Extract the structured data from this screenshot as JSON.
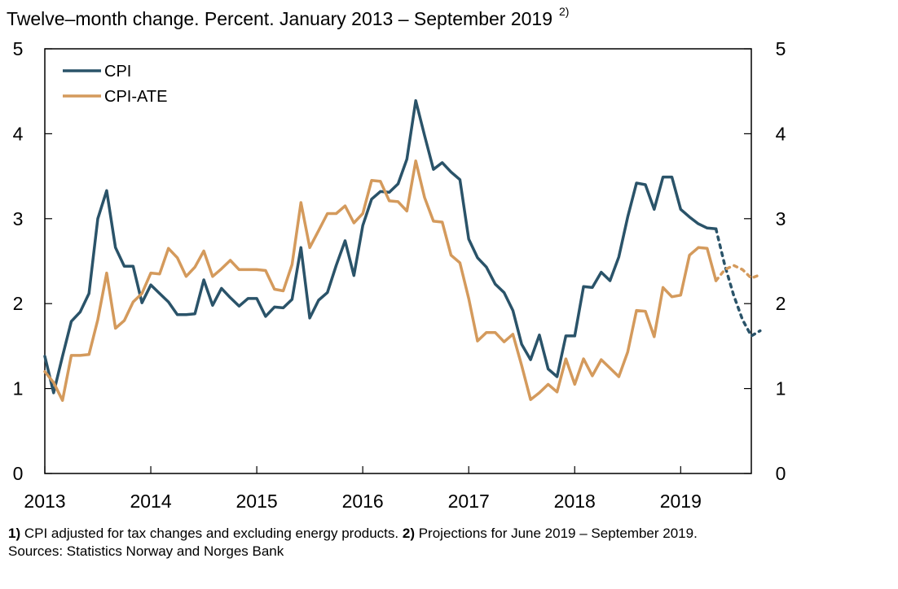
{
  "title": {
    "text": "Twelve–month change. Percent. January 2013 – September 2019",
    "sup": "2)"
  },
  "colors": {
    "cpi": "#2a5369",
    "cpi_ate": "#d49a5c"
  },
  "footnotes": {
    "n1_label": "1)",
    "n1_text": " CPI adjusted for tax changes and excluding energy products. ",
    "n2_label": "2)",
    "n2_text": " Projections for June 2019 – September 2019.",
    "sources": "Sources: Statistics Norway and Norges Bank"
  },
  "chart_data": {
    "type": "line",
    "title": "Twelve–month change. Percent. January 2013 – September 2019",
    "x_start": "2013-01",
    "x_end": "2019-09",
    "xticks": [
      "2013",
      "2014",
      "2015",
      "2016",
      "2017",
      "2018",
      "2019"
    ],
    "yticks": [
      "0",
      "1",
      "2",
      "3",
      "4",
      "5"
    ],
    "ylim": [
      0,
      5
    ],
    "grid": false,
    "legend_position": "top-left",
    "projection_start": "2019-06",
    "series": [
      {
        "name": "CPI",
        "color": "#2a5369",
        "values": [
          1.38,
          0.95,
          1.38,
          1.79,
          1.9,
          2.12,
          3.0,
          3.33,
          2.66,
          2.44,
          2.44,
          2.01,
          2.22,
          2.12,
          2.02,
          1.87,
          1.87,
          1.88,
          2.28,
          1.98,
          2.18,
          2.07,
          1.97,
          2.06,
          2.06,
          1.85,
          1.96,
          1.95,
          2.05,
          2.66,
          1.83,
          2.04,
          2.13,
          2.45,
          2.74,
          2.33,
          2.92,
          3.23,
          3.32,
          3.31,
          3.41,
          3.7,
          4.39,
          3.98,
          3.58,
          3.66,
          3.55,
          3.46,
          2.76,
          2.54,
          2.43,
          2.23,
          2.13,
          1.92,
          1.52,
          1.34,
          1.63,
          1.23,
          1.14,
          1.62,
          1.62,
          2.2,
          2.19,
          2.37,
          2.27,
          2.55,
          3.02,
          3.42,
          3.4,
          3.11,
          3.49,
          3.49,
          3.11,
          3.02,
          2.94,
          2.89,
          2.88,
          2.45,
          2.1,
          1.81,
          1.62,
          1.68
        ]
      },
      {
        "name": "CPI-ATE",
        "color": "#d49a5c",
        "values": [
          1.2,
          1.07,
          0.86,
          1.39,
          1.39,
          1.4,
          1.81,
          2.36,
          1.71,
          1.8,
          2.02,
          2.12,
          2.36,
          2.35,
          2.65,
          2.54,
          2.32,
          2.43,
          2.62,
          2.32,
          2.41,
          2.51,
          2.4,
          2.4,
          2.4,
          2.39,
          2.17,
          2.15,
          2.46,
          3.19,
          2.66,
          2.86,
          3.06,
          3.06,
          3.15,
          2.95,
          3.06,
          3.45,
          3.44,
          3.21,
          3.2,
          3.09,
          3.68,
          3.25,
          2.97,
          2.96,
          2.57,
          2.48,
          2.06,
          1.56,
          1.66,
          1.66,
          1.55,
          1.64,
          1.27,
          0.87,
          0.95,
          1.05,
          0.96,
          1.35,
          1.05,
          1.35,
          1.15,
          1.34,
          1.24,
          1.14,
          1.43,
          1.92,
          1.91,
          1.61,
          2.19,
          2.08,
          2.1,
          2.57,
          2.66,
          2.65,
          2.27,
          2.4,
          2.45,
          2.4,
          2.3,
          2.34
        ]
      }
    ]
  }
}
